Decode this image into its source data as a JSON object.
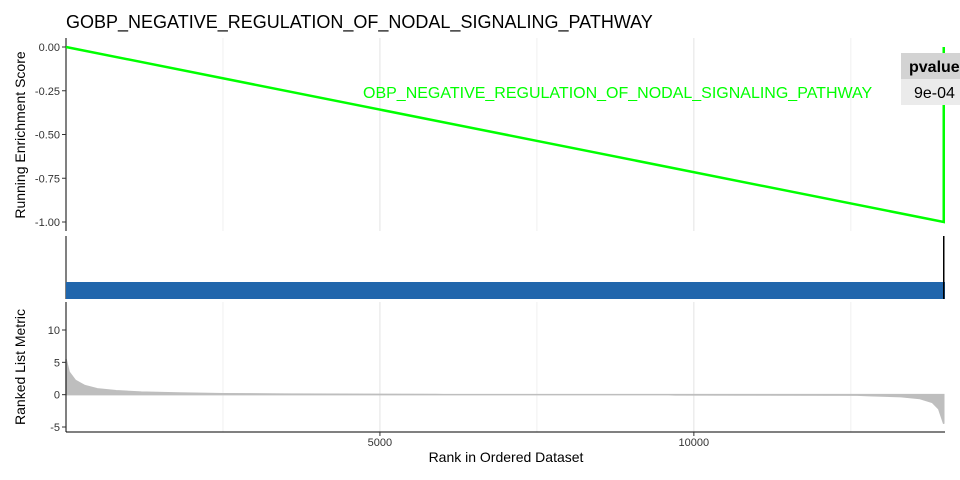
{
  "chart_data": {
    "type": "gsea-plot",
    "title": "GOBP_NEGATIVE_REGULATION_OF_NODAL_SIGNALING_PATHWAY",
    "xlabel": "Rank in Ordered Dataset",
    "xlim": [
      0,
      14000
    ],
    "x_ticks": [
      5000,
      10000
    ],
    "x_tick_labels": [
      "5000",
      "10000"
    ],
    "panels": [
      {
        "name": "running-enrichment",
        "type": "line",
        "ylabel": "Running Enrichment Score",
        "ylim": [
          -1.0,
          0.0
        ],
        "y_ticks": [
          0.0,
          -0.25,
          -0.5,
          -0.75,
          -1.0
        ],
        "y_tick_labels": [
          "0.00",
          "-0.25",
          "-0.50",
          "-0.75",
          "-1.00"
        ],
        "series": [
          {
            "name": "OBP_NEGATIVE_REGULATION_OF_NODAL_SIGNALING_PATHWAY",
            "color": "#00ff00",
            "x": [
              0,
              13980,
              13980
            ],
            "y": [
              0.0,
              -1.0,
              0.0
            ]
          }
        ]
      },
      {
        "name": "gene-hits",
        "type": "bar",
        "hit_ranks": [
          13980
        ],
        "bar_color": "#2166ac"
      },
      {
        "name": "ranked-list-metric",
        "type": "area",
        "ylabel": "Ranked List Metric",
        "ylim": [
          -5,
          14
        ],
        "y_ticks": [
          10,
          5,
          0,
          -5
        ],
        "y_tick_labels": [
          "10",
          "5",
          "0",
          "-5"
        ],
        "fill_color": "#bebebe",
        "x": [
          0,
          50,
          150,
          300,
          500,
          800,
          1200,
          1800,
          2500,
          3500,
          5000,
          5900,
          6000,
          8900,
          9000,
          9600,
          9700,
          12600,
          12800,
          13300,
          13600,
          13800,
          13900,
          13980
        ],
        "y": [
          5.5,
          3.5,
          2.2,
          1.4,
          0.9,
          0.6,
          0.4,
          0.25,
          0.15,
          0.08,
          0.04,
          0.02,
          0.0,
          0.0,
          0.0,
          0.0,
          -0.03,
          -0.08,
          -0.15,
          -0.3,
          -0.6,
          -1.2,
          -2.2,
          -4.5
        ]
      }
    ],
    "table": {
      "header": "pvalue",
      "value": "9e-04"
    }
  }
}
